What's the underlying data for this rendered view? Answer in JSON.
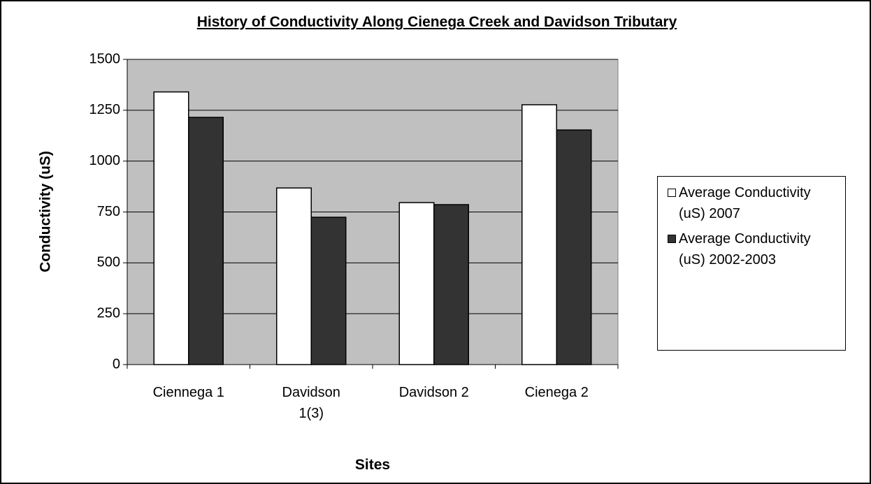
{
  "chart_data": {
    "type": "bar",
    "title": "History of Conductivity Along Cienega Creek and Davidson Tributary",
    "x_label": "Sites",
    "y_label": "Conductivity (uS)",
    "categories": [
      "Ciennega 1",
      "Davidson 1(3)",
      "Davidson 2",
      "Cienega 2"
    ],
    "series": [
      {
        "name": "Average Conductivity (uS) 2007",
        "color": "#ffffff",
        "values": [
          1340,
          868,
          796,
          1277
        ]
      },
      {
        "name": "Average Conductivity (uS) 2002-2003",
        "color": "#333333",
        "values": [
          1215,
          724,
          786,
          1153
        ]
      }
    ],
    "ylim": [
      0,
      1500
    ],
    "yticks": [
      0,
      250,
      500,
      750,
      1000,
      1250,
      1500
    ],
    "grid": true,
    "legend": "right"
  }
}
